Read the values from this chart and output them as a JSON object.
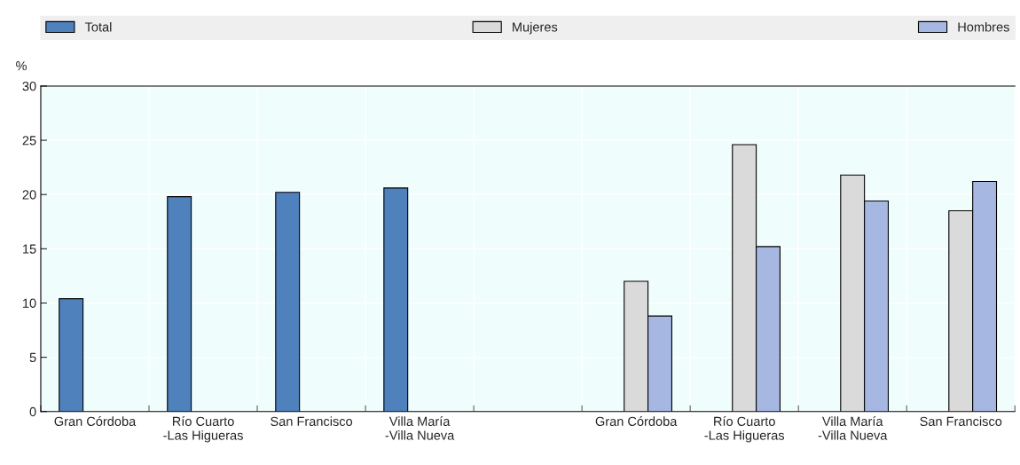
{
  "chart_data": {
    "type": "bar",
    "ylabel": "%",
    "categories": [
      "Gran Córdoba",
      "Río Cuarto\n-Las Higueras",
      "San Francisco",
      "Villa María\n-Villa Nueva",
      null,
      "Gran Córdoba",
      "Río Cuarto\n-Las Higueras",
      "Villa María\n-Villa Nueva",
      "San Francisco"
    ],
    "series": [
      {
        "name": "Total",
        "color": "#4f81bd",
        "values": [
          10.4,
          19.8,
          20.2,
          20.6,
          null,
          null,
          null,
          null,
          null
        ]
      },
      {
        "name": "Mujeres",
        "color": "#dadada",
        "values": [
          null,
          null,
          null,
          null,
          null,
          12.0,
          24.6,
          21.8,
          18.5
        ]
      },
      {
        "name": "Hombres",
        "color": "#a6b8e2",
        "values": [
          null,
          null,
          null,
          null,
          null,
          8.8,
          15.2,
          19.4,
          21.2
        ]
      }
    ],
    "ylim": [
      0,
      30
    ],
    "yticks": [
      0,
      5,
      10,
      15,
      20,
      25,
      30
    ],
    "grid": true,
    "legend": "top"
  }
}
